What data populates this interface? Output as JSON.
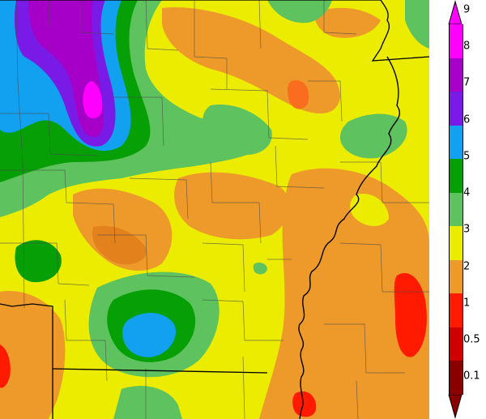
{
  "legend": {
    "labels": [
      "9",
      "8",
      "7",
      "6",
      "5",
      "4",
      "3",
      "2",
      "1",
      "0.5",
      "0.1"
    ],
    "colors": [
      "#ff00ff",
      "#a600c8",
      "#7a1ae6",
      "#12a0f0",
      "#06a006",
      "#5ec25e",
      "#ecec00",
      "#ee9a2a",
      "#ff1a00",
      "#d00000",
      "#8a0000"
    ]
  }
}
